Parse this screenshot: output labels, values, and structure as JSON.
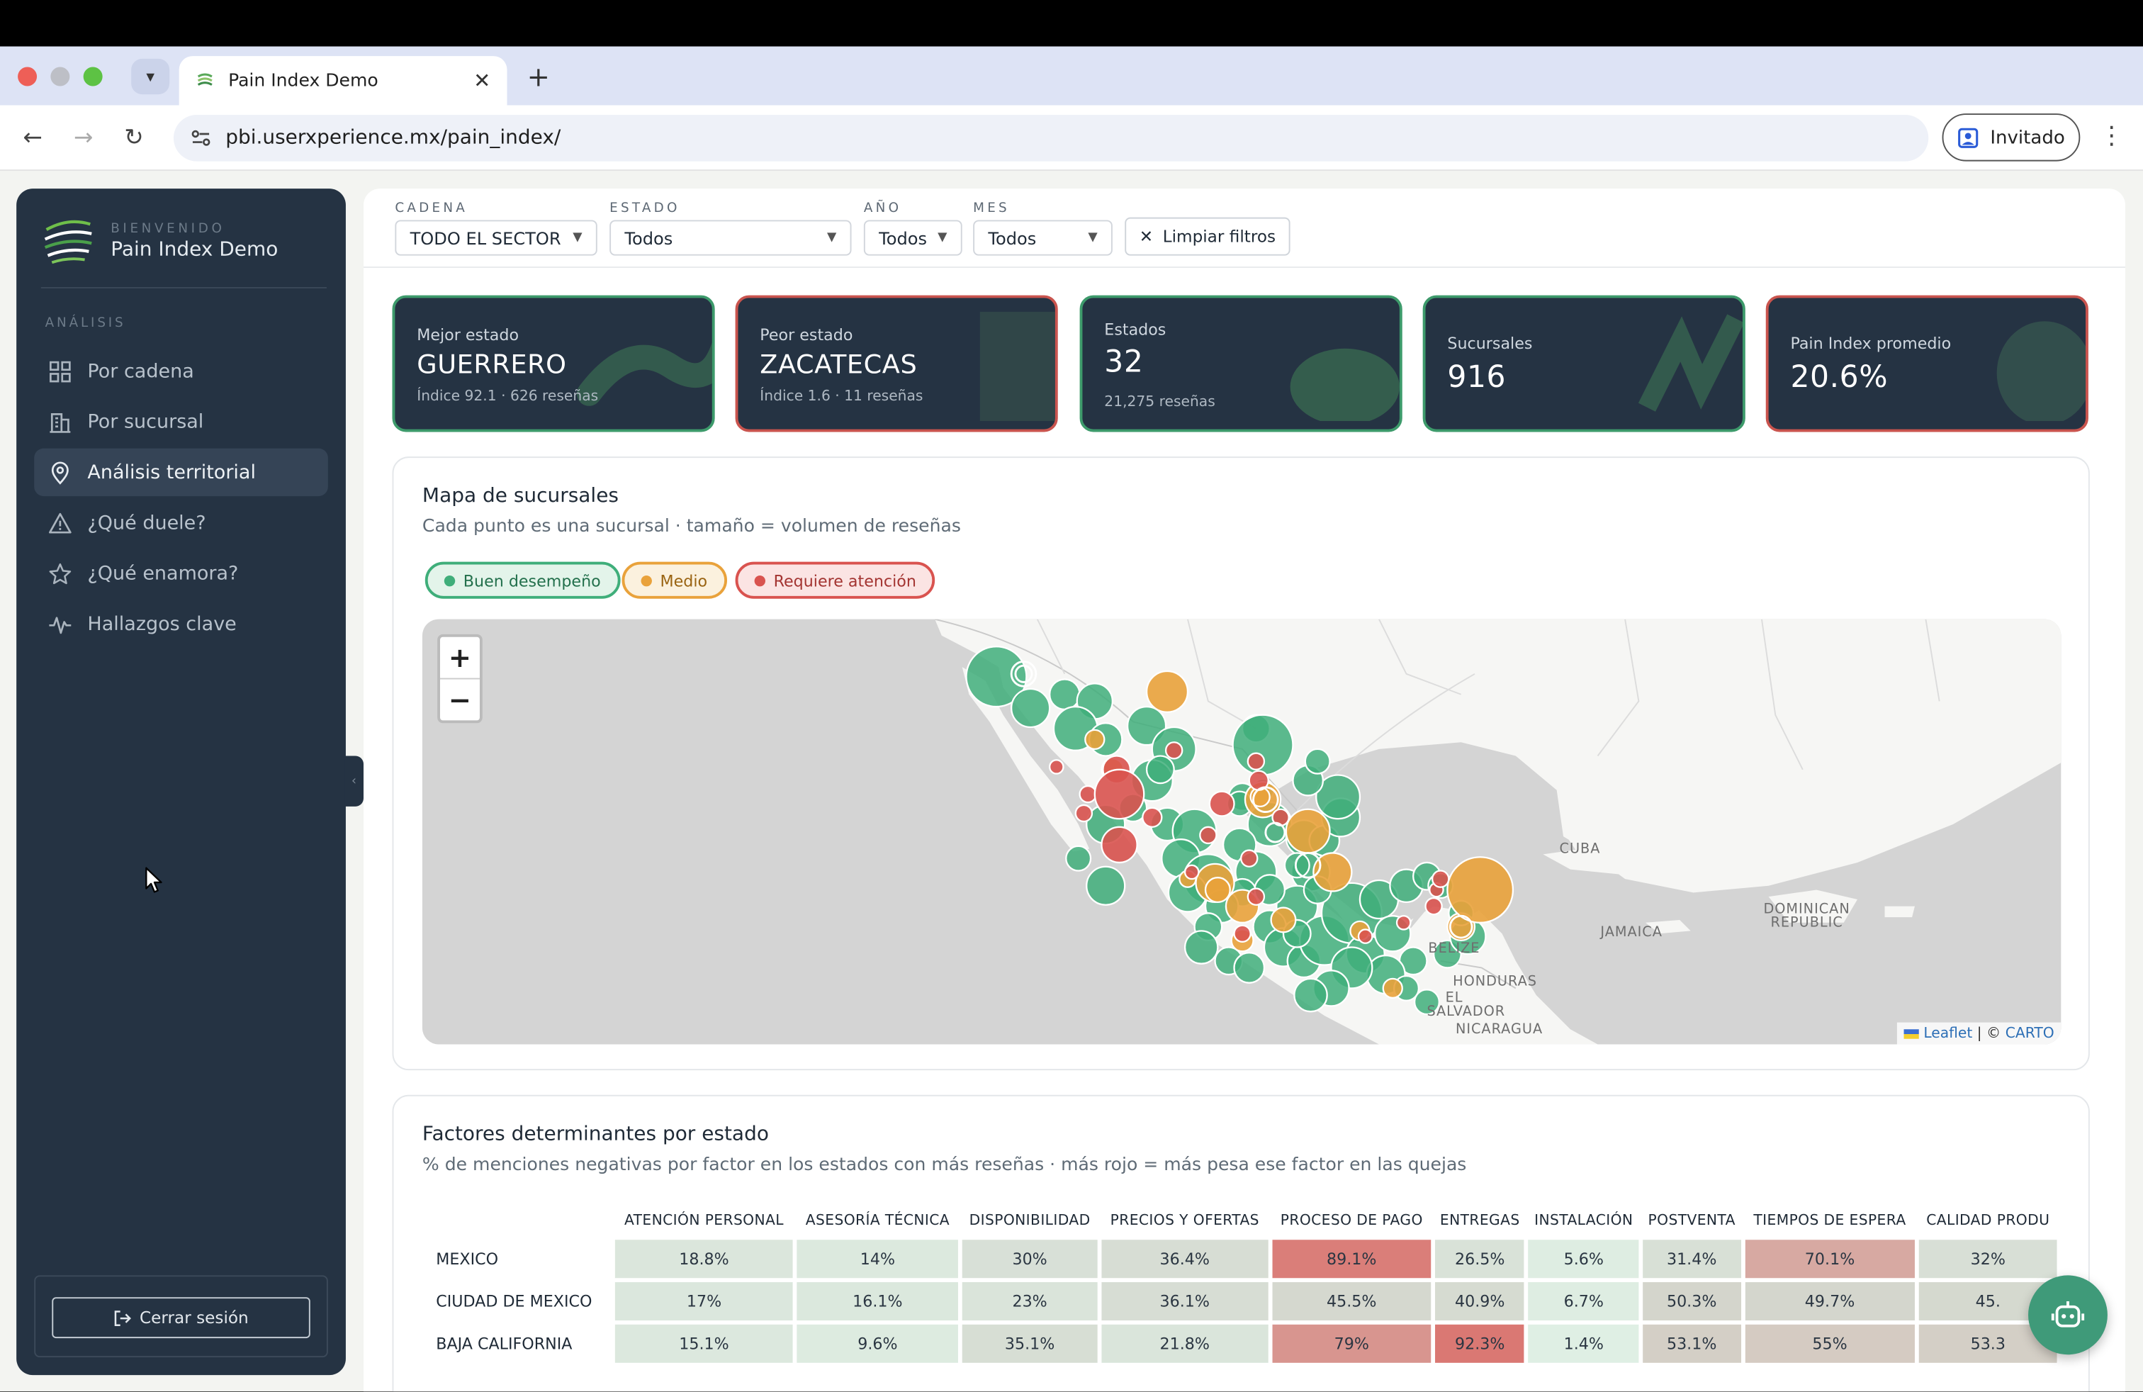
{
  "browser": {
    "tab_title": "Pain Index Demo",
    "url": "pbi.userxperience.mx/pain_index/",
    "profile_label": "Invitado"
  },
  "sidebar": {
    "welcome": "BIENVENIDO",
    "app_name": "Pain Index Demo",
    "section": "ANÁLISIS",
    "items": [
      {
        "label": "Por cadena",
        "icon": "grid-icon"
      },
      {
        "label": "Por sucursal",
        "icon": "building-icon"
      },
      {
        "label": "Análisis territorial",
        "icon": "location-pin-icon",
        "active": true
      },
      {
        "label": "¿Qué duele?",
        "icon": "warning-icon"
      },
      {
        "label": "¿Qué enamora?",
        "icon": "star-icon"
      },
      {
        "label": "Hallazgos clave",
        "icon": "pulse-icon"
      }
    ],
    "logout_label": "Cerrar sesión"
  },
  "filters": {
    "cadena": {
      "label": "CADENA",
      "value": "TODO EL SECTOR"
    },
    "estado": {
      "label": "ESTADO",
      "value": "Todos"
    },
    "anio": {
      "label": "AÑO",
      "value": "Todos"
    },
    "mes": {
      "label": "MES",
      "value": "Todos"
    },
    "clear_label": "Limpiar filtros"
  },
  "kpis": [
    {
      "label": "Mejor estado",
      "value": "GUERRERO",
      "sub": "Índice 92.1 · 626 reseñas",
      "tone": "good"
    },
    {
      "label": "Peor estado",
      "value": "ZACATECAS",
      "sub": "Índice 1.6 · 11 reseñas",
      "tone": "bad"
    },
    {
      "label": "Estados",
      "value": "32",
      "sub": "21,275 reseñas",
      "tone": "good"
    },
    {
      "label": "Sucursales",
      "value": "916",
      "sub": "",
      "tone": "good"
    },
    {
      "label": "Pain Index promedio",
      "value": "20.6%",
      "sub": "",
      "tone": "bad"
    }
  ],
  "map_card": {
    "title": "Mapa de sucursales",
    "subtitle": "Cada punto es una sucursal · tamaño = volumen de reseñas",
    "legend": [
      {
        "label": "Buen desempeño",
        "color": "#3fae7a"
      },
      {
        "label": "Medio",
        "color": "#e9a23b"
      },
      {
        "label": "Requiere atención",
        "color": "#d9534f"
      }
    ],
    "zoom_in": "+",
    "zoom_out": "−",
    "attribution_leaflet": "Leaflet",
    "attribution_sep": " | © ",
    "attribution_carto": "CARTO",
    "place_labels": [
      "CUBA",
      "JAMAICA",
      "DOMINICAN REPUBLIC",
      "BELIZE",
      "HONDURAS",
      "EL SALVADOR",
      "NICARAGUA"
    ]
  },
  "factors_card": {
    "title": "Factores determinantes por estado",
    "subtitle": "% de menciones negativas por factor en los estados con más reseñas · más rojo = más pesa ese factor en las quejas",
    "columns": [
      "ATENCIÓN PERSONAL",
      "ASESORÍA TÉCNICA",
      "DISPONIBILIDAD",
      "PRECIOS Y OFERTAS",
      "PROCESO DE PAGO",
      "ENTREGAS",
      "INSTALACIÓN",
      "POSTVENTA",
      "TIEMPOS DE ESPERA",
      "CALIDAD PRODU"
    ],
    "rows": [
      {
        "state": "MEXICO",
        "values": [
          "18.8%",
          "14%",
          "30%",
          "36.4%",
          "89.1%",
          "26.5%",
          "5.6%",
          "31.4%",
          "70.1%",
          "32%"
        ],
        "levels": [
          18.8,
          14,
          30,
          36.4,
          89.1,
          26.5,
          5.6,
          31.4,
          70.1,
          32
        ]
      },
      {
        "state": "CIUDAD DE MEXICO",
        "values": [
          "17%",
          "16.1%",
          "23%",
          "36.1%",
          "45.5%",
          "40.9%",
          "6.7%",
          "50.3%",
          "49.7%",
          "45."
        ],
        "levels": [
          17,
          16.1,
          23,
          36.1,
          45.5,
          40.9,
          6.7,
          50.3,
          49.7,
          45
        ]
      },
      {
        "state": "BAJA CALIFORNIA",
        "values": [
          "15.1%",
          "9.6%",
          "35.1%",
          "21.8%",
          "79%",
          "92.3%",
          "1.4%",
          "53.1%",
          "55%",
          "53.3"
        ],
        "levels": [
          15.1,
          9.6,
          35.1,
          21.8,
          79,
          92.3,
          1.4,
          53.1,
          55,
          53.3
        ]
      }
    ]
  }
}
